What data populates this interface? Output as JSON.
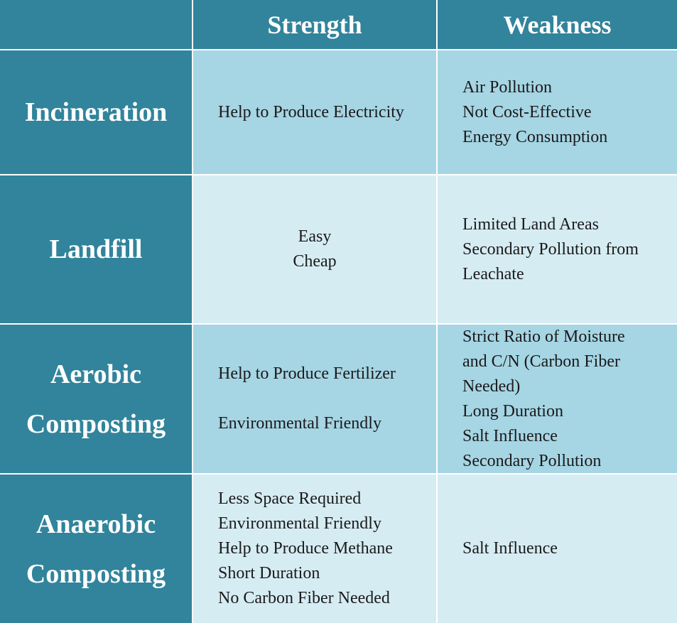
{
  "table": {
    "headers": {
      "strength": "Strength",
      "weakness": "Weakness"
    },
    "rows": [
      {
        "method_lines": [
          "Incineration"
        ],
        "strength": [
          "Help to Produce Electricity"
        ],
        "weakness": [
          "Air Pollution",
          "Not Cost-Effective",
          "Energy Consumption"
        ]
      },
      {
        "method_lines": [
          "Landfill"
        ],
        "strength": [
          "Easy",
          "Cheap"
        ],
        "weakness": [
          "Limited Land Areas",
          "Secondary Pollution from",
          "Leachate"
        ]
      },
      {
        "method_lines": [
          "Aerobic",
          "Composting"
        ],
        "strength": [
          "Help to Produce Fertilizer",
          "Environmental Friendly"
        ],
        "weakness": [
          "Strict Ratio of Moisture",
          "and C/N (Carbon Fiber",
          "Needed)",
          "Long Duration",
          "Salt Influence",
          "Secondary Pollution"
        ]
      },
      {
        "method_lines": [
          "Anaerobic",
          "Composting"
        ],
        "strength": [
          "Less Space Required",
          "Environmental Friendly",
          "Help to Produce Methane",
          "Short Duration",
          "No Carbon Fiber Needed"
        ],
        "weakness": [
          "Salt Influence"
        ]
      }
    ],
    "colors": {
      "header_bg": "#31849b",
      "cell_dark": "#a6d5e4",
      "cell_light": "#d6ecf3",
      "header_text": "#ffffff"
    }
  }
}
